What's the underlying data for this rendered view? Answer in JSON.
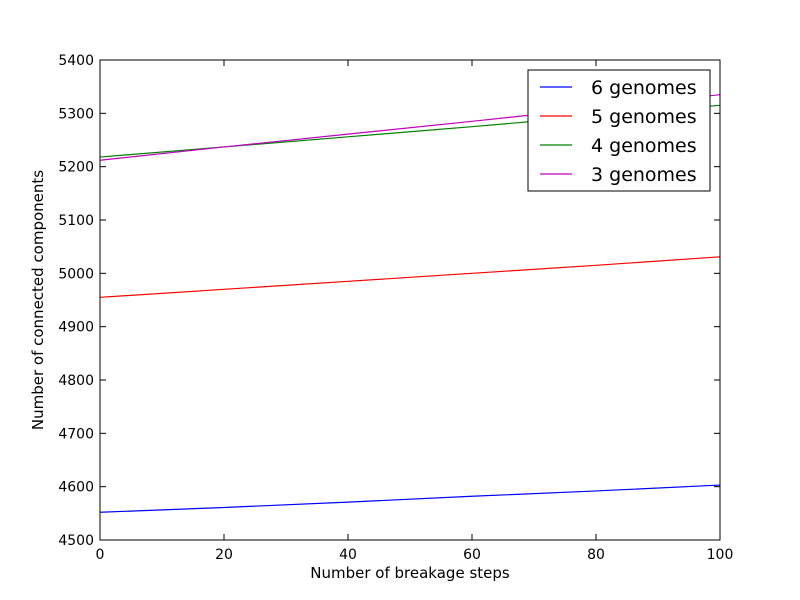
{
  "chart_data": {
    "type": "line",
    "title": "",
    "xlabel": "Number of breakage steps",
    "ylabel": "Number of connected components",
    "xlim": [
      0,
      100
    ],
    "ylim": [
      4500,
      5400
    ],
    "xticks": [
      0,
      20,
      40,
      60,
      80,
      100
    ],
    "yticks": [
      4500,
      4600,
      4700,
      4800,
      4900,
      5000,
      5100,
      5200,
      5300,
      5400
    ],
    "grid": false,
    "legend_position": "top-right",
    "series": [
      {
        "name": "6 genomes",
        "color": "#0000ff",
        "x": [
          0,
          20,
          40,
          60,
          80,
          100
        ],
        "y": [
          4552,
          4561,
          4571,
          4582,
          4592,
          4603
        ]
      },
      {
        "name": "5 genomes",
        "color": "#ff0000",
        "x": [
          0,
          20,
          40,
          60,
          80,
          100
        ],
        "y": [
          4955,
          4970,
          4985,
          5000,
          5015,
          5031
        ]
      },
      {
        "name": "4 genomes",
        "color": "#008000",
        "x": [
          0,
          20,
          40,
          60,
          80,
          100
        ],
        "y": [
          5218,
          5237,
          5256,
          5275,
          5295,
          5315
        ]
      },
      {
        "name": "3 genomes",
        "color": "#bf00bf",
        "x": [
          0,
          20,
          40,
          60,
          80,
          100
        ],
        "y": [
          5212,
          5237,
          5261,
          5285,
          5310,
          5335
        ]
      }
    ]
  }
}
